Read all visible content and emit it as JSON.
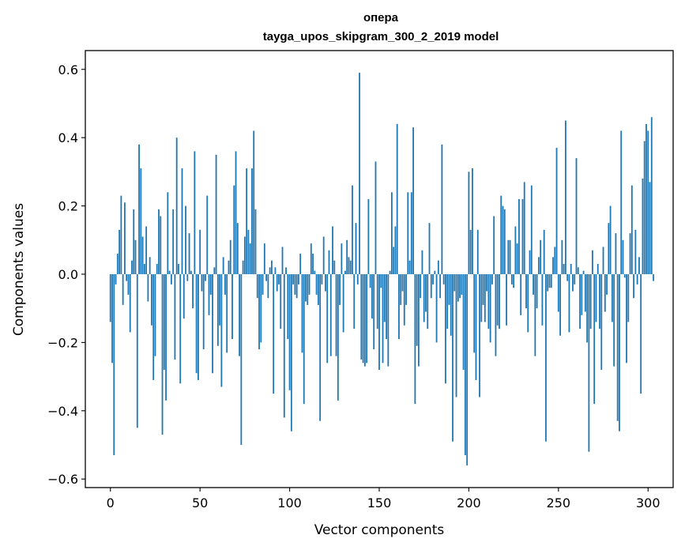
{
  "chart_data": {
    "type": "bar",
    "title_line1": "опера",
    "title_line2": "tayga_upos_skipgram_300_2_2019 model",
    "xlabel": "Vector components",
    "ylabel": "Components values",
    "xlim": [
      -14,
      314
    ],
    "ylim": [
      -0.625,
      0.655
    ],
    "x_ticks": [
      0,
      50,
      100,
      150,
      200,
      250,
      300
    ],
    "y_ticks": [
      -0.6,
      -0.4,
      -0.2,
      0.0,
      0.2,
      0.4,
      0.6
    ],
    "y_tick_labels": [
      "−0.6",
      "−0.4",
      "−0.2",
      "0.0",
      "0.2",
      "0.4",
      "0.6"
    ],
    "bar_color": "#1f77b4",
    "values": [
      -0.14,
      -0.26,
      -0.53,
      -0.03,
      0.06,
      0.13,
      0.23,
      -0.09,
      0.21,
      -0.02,
      -0.06,
      -0.17,
      0.04,
      0.19,
      0.1,
      -0.45,
      0.38,
      0.31,
      0.11,
      0.03,
      0.14,
      -0.08,
      0.05,
      -0.15,
      -0.31,
      -0.24,
      0.03,
      0.19,
      0.17,
      -0.47,
      -0.28,
      -0.37,
      0.24,
      0.01,
      -0.03,
      0.19,
      -0.25,
      0.4,
      0.03,
      -0.32,
      0.31,
      -0.13,
      0.2,
      -0.02,
      0.12,
      0.01,
      -0.1,
      0.36,
      -0.29,
      -0.31,
      0.13,
      -0.05,
      -0.22,
      -0.02,
      0.23,
      -0.12,
      -0.06,
      -0.29,
      0.02,
      0.35,
      -0.21,
      -0.15,
      -0.33,
      0.05,
      -0.06,
      -0.23,
      0.04,
      0.1,
      -0.19,
      0.26,
      0.36,
      0.15,
      -0.24,
      -0.5,
      0.04,
      0.11,
      0.31,
      0.13,
      0.09,
      0.31,
      0.42,
      0.19,
      -0.07,
      -0.22,
      -0.2,
      -0.06,
      0.09,
      -0.02,
      -0.07,
      0.02,
      0.04,
      -0.35,
      0.02,
      -0.05,
      -0.03,
      -0.16,
      0.08,
      -0.42,
      0.02,
      -0.19,
      -0.34,
      -0.46,
      -0.03,
      -0.06,
      -0.07,
      -0.03,
      0.06,
      -0.23,
      -0.38,
      -0.08,
      -0.09,
      -0.06,
      0.09,
      0.06,
      0.01,
      -0.06,
      -0.09,
      -0.43,
      -0.03,
      0.11,
      -0.05,
      -0.26,
      0.07,
      -0.24,
      0.14,
      0.04,
      -0.24,
      -0.37,
      -0.09,
      0.09,
      -0.17,
      0.01,
      0.1,
      0.05,
      0.04,
      0.26,
      -0.16,
      0.15,
      -0.03,
      0.59,
      -0.25,
      -0.26,
      -0.27,
      -0.26,
      0.22,
      -0.04,
      -0.13,
      -0.22,
      0.33,
      -0.16,
      -0.28,
      -0.04,
      -0.26,
      -0.14,
      -0.19,
      -0.27,
      0.01,
      0.24,
      0.08,
      0.14,
      0.44,
      -0.19,
      -0.09,
      -0.05,
      -0.15,
      -0.09,
      0.24,
      0.04,
      0.24,
      0.43,
      -0.38,
      -0.21,
      -0.27,
      -0.07,
      0.07,
      -0.14,
      -0.11,
      -0.16,
      0.15,
      -0.07,
      -0.03,
      0.01,
      -0.2,
      0.04,
      -0.07,
      0.38,
      -0.03,
      -0.32,
      -0.16,
      -0.09,
      -0.18,
      -0.49,
      -0.05,
      -0.36,
      -0.08,
      -0.07,
      -0.06,
      -0.28,
      -0.53,
      -0.56,
      0.3,
      0.13,
      0.31,
      -0.23,
      -0.31,
      0.13,
      -0.36,
      -0.14,
      -0.09,
      -0.14,
      -0.05,
      -0.16,
      -0.2,
      -0.03,
      0.17,
      -0.24,
      -0.15,
      -0.16,
      0.23,
      0.2,
      0.19,
      -0.15,
      0.1,
      0.1,
      -0.03,
      -0.04,
      0.14,
      0.09,
      0.22,
      -0.12,
      0.22,
      0.27,
      -0.1,
      -0.17,
      0.07,
      0.26,
      -0.06,
      -0.24,
      -0.1,
      0.05,
      0.1,
      -0.15,
      0.13,
      -0.49,
      -0.05,
      -0.04,
      -0.04,
      0.05,
      0.08,
      0.37,
      -0.11,
      -0.18,
      0.1,
      0.03,
      0.45,
      -0.02,
      -0.17,
      0.03,
      -0.05,
      -0.03,
      0.34,
      0.02,
      -0.16,
      -0.12,
      0.01,
      -0.11,
      -0.2,
      -0.52,
      -0.16,
      0.07,
      -0.38,
      -0.14,
      0.03,
      -0.16,
      -0.28,
      0.08,
      -0.11,
      -0.06,
      0.15,
      0.2,
      -0.14,
      -0.27,
      0.12,
      -0.43,
      -0.46,
      0.42,
      0.1,
      -0.01,
      -0.26,
      -0.14,
      0.12,
      0.26,
      -0.07,
      0.13,
      -0.03,
      0.05,
      -0.35,
      0.28,
      0.39,
      0.44,
      0.42,
      0.27,
      0.46,
      -0.02
    ]
  }
}
